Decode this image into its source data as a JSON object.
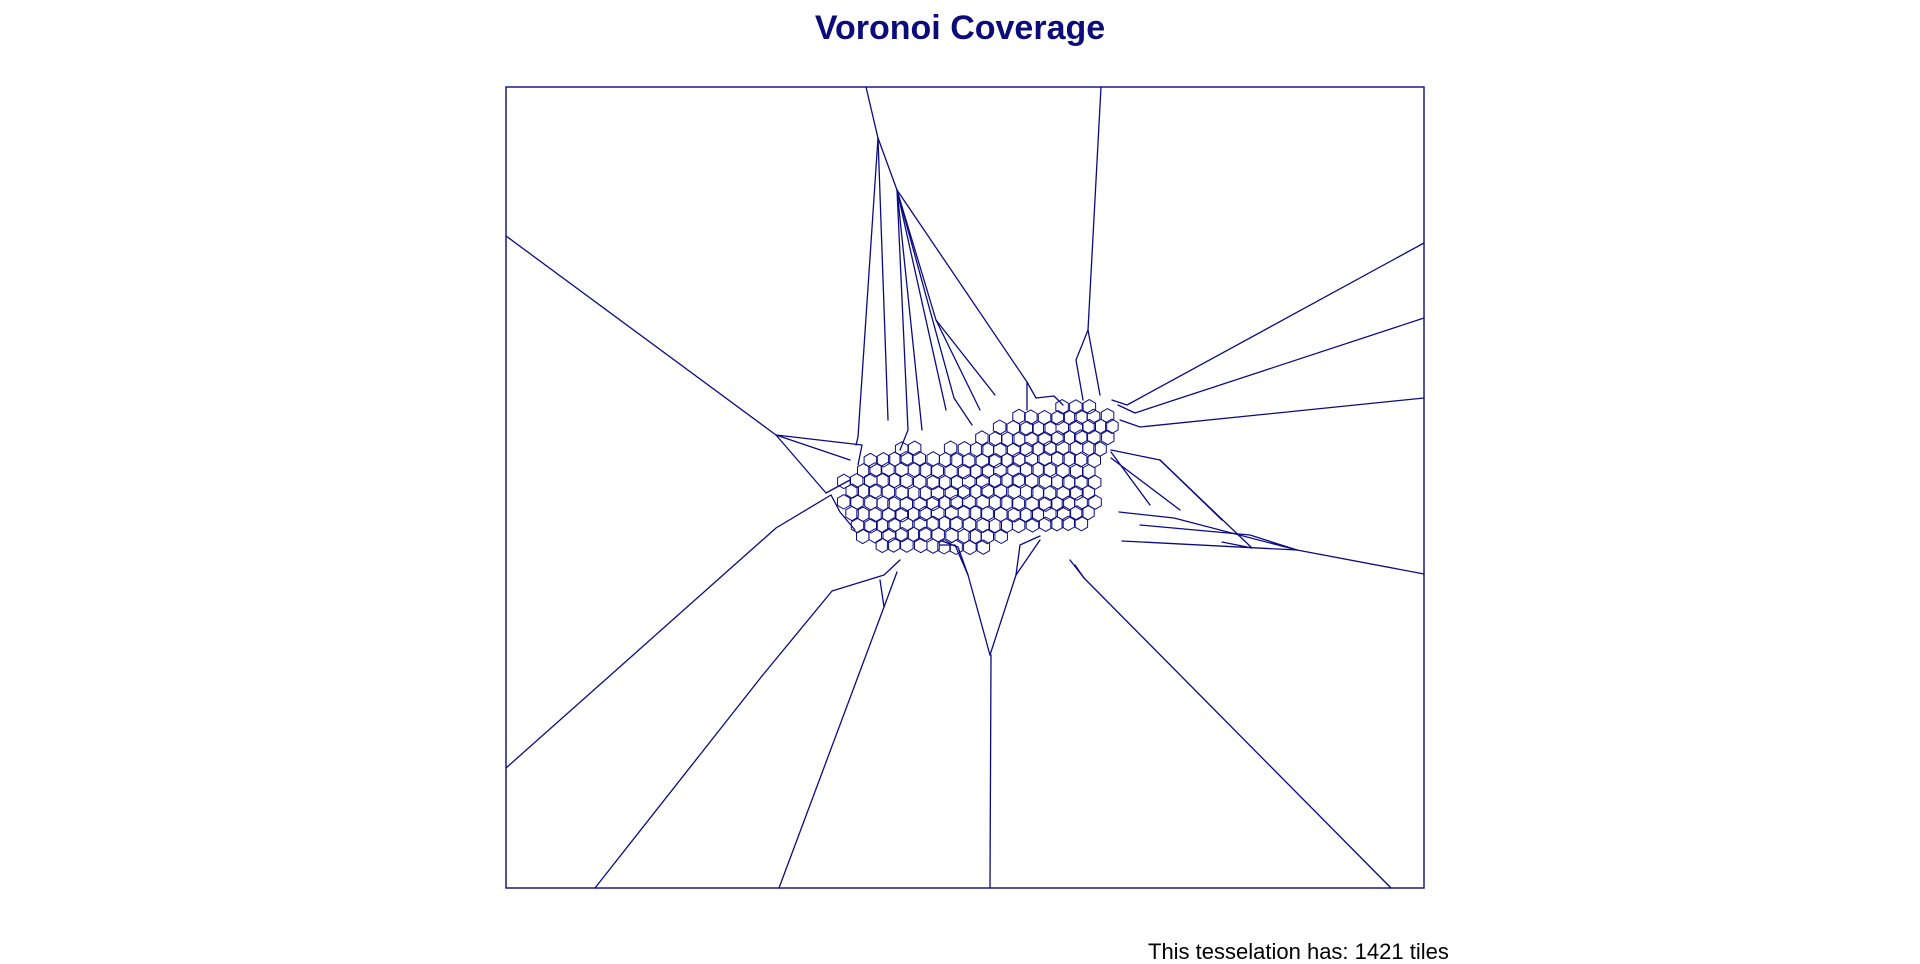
{
  "title": "Voronoi Coverage",
  "caption": "This tesselation has: 1421 tiles",
  "tile_count": 1421,
  "colors": {
    "title": "#0b0b7a",
    "lines": "#0b0b80",
    "caption": "#000000",
    "background": "#ffffff"
  }
}
